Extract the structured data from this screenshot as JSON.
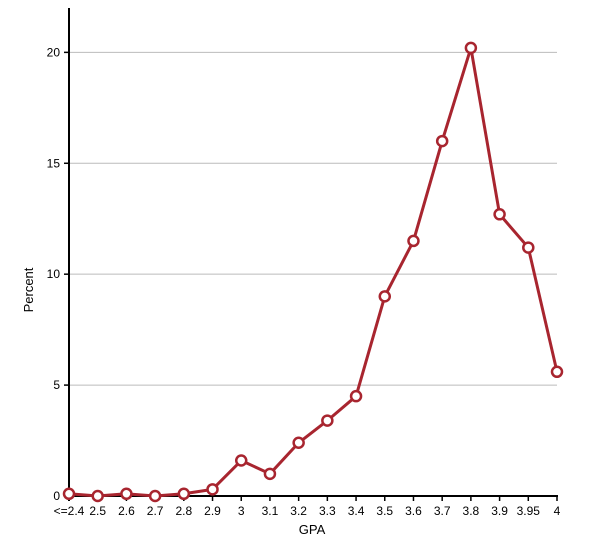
{
  "chart_data": {
    "type": "line",
    "xlabel": "GPA",
    "ylabel": "Percent",
    "categories": [
      "<=2.4",
      "2.5",
      "2.6",
      "2.7",
      "2.8",
      "2.9",
      "3",
      "3.1",
      "3.2",
      "3.3",
      "3.4",
      "3.5",
      "3.6",
      "3.7",
      "3.8",
      "3.9",
      "3.95",
      "4"
    ],
    "values": [
      0.1,
      0.0,
      0.1,
      0.0,
      0.1,
      0.3,
      1.6,
      1.0,
      2.4,
      3.4,
      4.5,
      9.0,
      11.5,
      16.0,
      20.2,
      12.7,
      11.2,
      5.6
    ],
    "ylim": [
      0,
      22
    ],
    "yticks": [
      0,
      5,
      10,
      15,
      20
    ],
    "grid": true,
    "color": "#a8252f"
  }
}
